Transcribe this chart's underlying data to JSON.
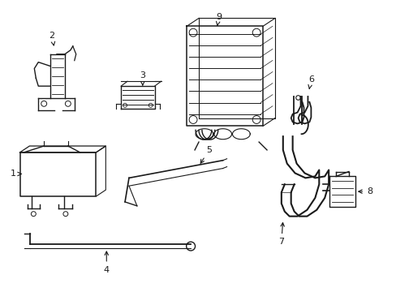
{
  "background_color": "#ffffff",
  "line_color": "#1a1a1a",
  "line_width": 1.0,
  "fig_width": 4.89,
  "fig_height": 3.6,
  "dpi": 100
}
